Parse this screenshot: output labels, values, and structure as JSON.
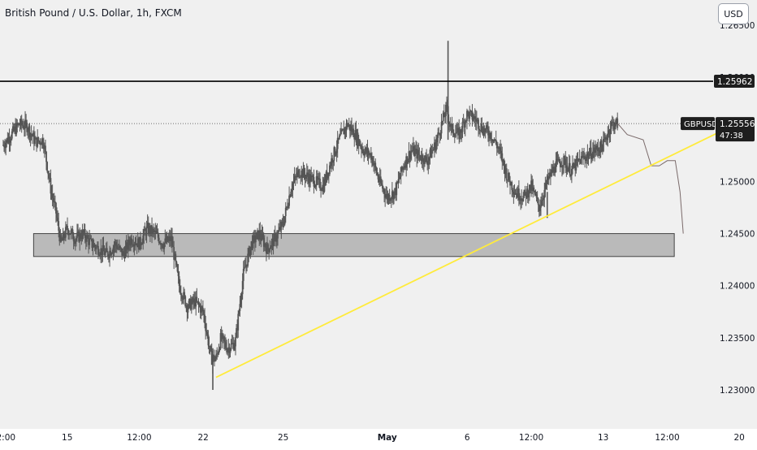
{
  "header": {
    "title": "British Pound / U.S. Dollar, 1h, FXCM",
    "currency_label": "USD"
  },
  "colors": {
    "candle": "#555555",
    "resistance_line": "#000000",
    "trendline": "#ffeb3b",
    "zone_fill": "#a8a8a8",
    "forecast_path": "#7a6a6a",
    "price_badge_bg": "#1e1e1e",
    "price_badge_text": "#ffffff",
    "axis_text": "#131722",
    "background": "#f0f0f0"
  },
  "chart_data": {
    "type": "candlestick",
    "symbol": "GBPUSD",
    "price_axis": {
      "ticks": [
        1.23,
        1.235,
        1.24,
        1.245,
        1.25,
        1.255,
        1.26,
        1.265
      ],
      "tick_labels": [
        "1.23000",
        "1.23500",
        "1.24000",
        "1.24500",
        "1.25000",
        "1.25500",
        "1.26000",
        "1.26500"
      ],
      "range": [
        1.2285,
        1.2655
      ]
    },
    "time_axis": {
      "range": [
        0,
        40
      ],
      "ticks": [
        {
          "t": 0,
          "label": "12:00"
        },
        {
          "t": 4,
          "label": "15"
        },
        {
          "t": 8.5,
          "label": "12:00"
        },
        {
          "t": 12.5,
          "label": "22"
        },
        {
          "t": 17.5,
          "label": "25"
        },
        {
          "t": 24,
          "label": "May"
        },
        {
          "t": 29,
          "label": "6"
        },
        {
          "t": 33,
          "label": "12:00"
        },
        {
          "t": 37.5,
          "label": "13"
        },
        {
          "t": 41.5,
          "label": "12:00"
        },
        {
          "t": 46,
          "label": "20"
        }
      ]
    },
    "price_series": [
      [
        0,
        1.2535
      ],
      [
        0.5,
        1.2545
      ],
      [
        1,
        1.2555
      ],
      [
        1.5,
        1.2553
      ],
      [
        2,
        1.2538
      ],
      [
        2.5,
        1.254
      ],
      [
        3,
        1.249
      ],
      [
        3.3,
        1.247
      ],
      [
        3.6,
        1.244
      ],
      [
        4,
        1.2455
      ],
      [
        4.5,
        1.2445
      ],
      [
        5,
        1.245
      ],
      [
        5.5,
        1.244
      ],
      [
        6,
        1.2435
      ],
      [
        6.5,
        1.243
      ],
      [
        7,
        1.244
      ],
      [
        7.5,
        1.243
      ],
      [
        8,
        1.2445
      ],
      [
        8.5,
        1.244
      ],
      [
        9,
        1.2455
      ],
      [
        9.5,
        1.245
      ],
      [
        10,
        1.244
      ],
      [
        10.5,
        1.2445
      ],
      [
        11,
        1.24
      ],
      [
        11.5,
        1.238
      ],
      [
        12,
        1.2385
      ],
      [
        12.5,
        1.2375
      ],
      [
        13,
        1.233
      ],
      [
        13.3,
        1.233
      ],
      [
        13.6,
        1.235
      ],
      [
        14,
        1.234
      ],
      [
        14.5,
        1.2345
      ],
      [
        15,
        1.241
      ],
      [
        15.5,
        1.244
      ],
      [
        16,
        1.245
      ],
      [
        16.5,
        1.2435
      ],
      [
        17,
        1.2445
      ],
      [
        17.5,
        1.246
      ],
      [
        18,
        1.2495
      ],
      [
        18.5,
        1.251
      ],
      [
        19,
        1.2505
      ],
      [
        19.5,
        1.25
      ],
      [
        20,
        1.2495
      ],
      [
        20.5,
        1.252
      ],
      [
        21,
        1.254
      ],
      [
        21.5,
        1.2555
      ],
      [
        22,
        1.2545
      ],
      [
        22.5,
        1.253
      ],
      [
        23,
        1.2525
      ],
      [
        23.5,
        1.25
      ],
      [
        24,
        1.2485
      ],
      [
        24.5,
        1.249
      ],
      [
        25,
        1.2515
      ],
      [
        25.5,
        1.253
      ],
      [
        26,
        1.2525
      ],
      [
        26.5,
        1.252
      ],
      [
        27,
        1.2535
      ],
      [
        27.5,
        1.256
      ],
      [
        27.7,
        1.257
      ],
      [
        28,
        1.255
      ],
      [
        28.5,
        1.2545
      ],
      [
        29,
        1.2565
      ],
      [
        29.5,
        1.256
      ],
      [
        30,
        1.255
      ],
      [
        30.5,
        1.2545
      ],
      [
        31,
        1.253
      ],
      [
        31.5,
        1.2505
      ],
      [
        32,
        1.249
      ],
      [
        32.5,
        1.2485
      ],
      [
        33,
        1.2495
      ],
      [
        33.5,
        1.2475
      ],
      [
        34,
        1.25
      ],
      [
        34.5,
        1.2515
      ],
      [
        35,
        1.252
      ],
      [
        35.5,
        1.251
      ],
      [
        36,
        1.252
      ],
      [
        36.5,
        1.2525
      ],
      [
        37,
        1.253
      ],
      [
        37.5,
        1.2535
      ],
      [
        38,
        1.2555
      ],
      [
        38.4,
        1.25556
      ]
    ],
    "spikes": [
      {
        "t": 27.8,
        "high": 1.2635,
        "low": 1.254
      },
      {
        "t": 13.1,
        "high": 1.234,
        "low": 1.23
      },
      {
        "t": 34.0,
        "high": 1.249,
        "low": 1.2465
      }
    ],
    "forecast_path": [
      [
        38.4,
        1.25556
      ],
      [
        39,
        1.2545
      ],
      [
        40,
        1.254
      ],
      [
        40.5,
        1.2515
      ],
      [
        41,
        1.2515
      ],
      [
        41.5,
        1.252
      ],
      [
        42,
        1.252
      ],
      [
        42.3,
        1.249
      ],
      [
        42.5,
        1.245
      ]
    ],
    "resistance_level": {
      "price": 1.25962,
      "label": "1.25962"
    },
    "support_zone": {
      "price_top": 1.245,
      "price_bottom": 1.2428,
      "t_start": 1.9,
      "t_end": 46
    },
    "trendline": {
      "t1": 13.3,
      "p1": 1.2312,
      "t2": 45.5,
      "p2": 1.2553
    },
    "last_price": {
      "symbol": "GBPUSD",
      "price": 1.25556,
      "label": "1.25556",
      "countdown": "47:38"
    }
  }
}
